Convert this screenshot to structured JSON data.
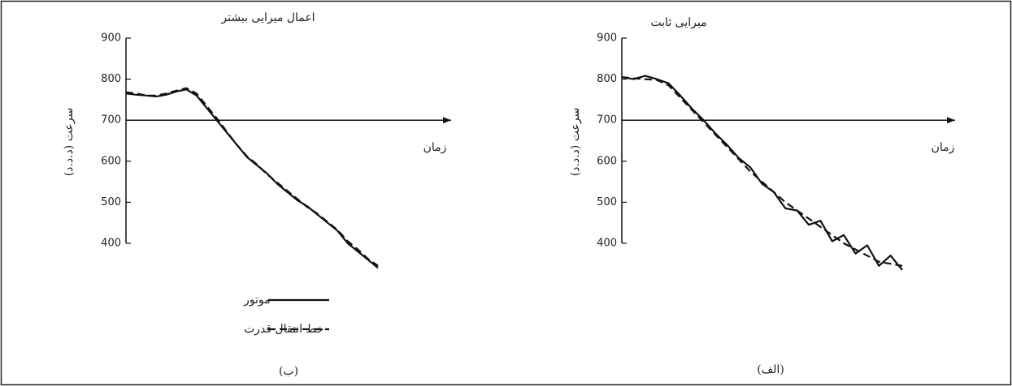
{
  "chart_data": [
    {
      "type": "line",
      "title": "اعمال میرایی بیشتر",
      "caption": "(ب)",
      "y_label": "سرعت (د.د.د)",
      "x_label": "زمان",
      "ylim": [
        300,
        900
      ],
      "yticks": [
        900,
        800,
        700,
        600,
        500,
        400
      ],
      "x_axis_at": 700,
      "legend": "bottom-left",
      "categories": [
        null,
        null,
        null,
        null,
        null,
        null,
        null,
        null,
        null,
        null,
        null,
        null,
        null,
        null,
        null,
        null,
        null,
        null,
        null,
        null,
        null,
        null,
        null,
        null,
        null,
        null
      ],
      "series": [
        {
          "name": "موتور",
          "color": "#111111",
          "dash": "solid",
          "values": [
            765,
            762,
            760,
            758,
            762,
            770,
            775,
            760,
            730,
            700,
            670,
            640,
            610,
            590,
            570,
            545,
            525,
            505,
            490,
            470,
            450,
            430,
            400,
            380,
            360,
            340
          ]
        },
        {
          "name": "خط انتقال قدرت",
          "color": "#111111",
          "dash": "dashed",
          "values": [
            768,
            765,
            760,
            760,
            765,
            772,
            778,
            765,
            735,
            705,
            672,
            640,
            612,
            592,
            568,
            548,
            528,
            508,
            488,
            472,
            452,
            432,
            405,
            385,
            362,
            345
          ]
        }
      ]
    },
    {
      "type": "line",
      "title": "میرایی ثابت",
      "caption": "(الف)",
      "y_label": "سرعت (د.د.د)",
      "x_label": "زمان",
      "ylim": [
        300,
        900
      ],
      "yticks": [
        900,
        800,
        700,
        600,
        500,
        400
      ],
      "x_axis_at": 700,
      "categories": [
        null,
        null,
        null,
        null,
        null,
        null,
        null,
        null,
        null,
        null,
        null,
        null,
        null,
        null,
        null,
        null,
        null,
        null,
        null,
        null,
        null,
        null,
        null,
        null,
        null
      ],
      "series": [
        {
          "color": "#111111",
          "dash": "solid",
          "values": [
            805,
            800,
            808,
            800,
            790,
            760,
            728,
            700,
            668,
            640,
            608,
            585,
            545,
            525,
            485,
            480,
            445,
            455,
            405,
            420,
            375,
            395,
            345,
            370,
            335
          ]
        },
        {
          "color": "#111111",
          "dash": "dashed",
          "values": [
            805,
            802,
            800,
            798,
            785,
            755,
            725,
            695,
            665,
            635,
            605,
            575,
            550,
            525,
            500,
            480,
            460,
            440,
            420,
            400,
            385,
            370,
            355,
            350,
            345
          ]
        }
      ]
    }
  ]
}
